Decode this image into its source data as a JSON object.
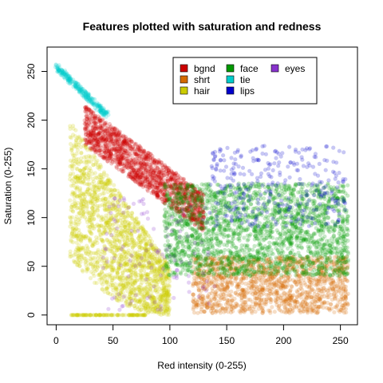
{
  "chart_data": {
    "type": "scatter",
    "title": "Features plotted with saturation and redness",
    "xlabel": "Red intensity (0-255)",
    "ylabel": "Saturation (0-255)",
    "xlim": [
      -8,
      265
    ],
    "ylim": [
      -10,
      275
    ],
    "x_ticks": [
      0,
      50,
      100,
      150,
      200,
      250
    ],
    "y_ticks": [
      0,
      50,
      100,
      150,
      200,
      250
    ],
    "grid": false,
    "legend_position": "top-right",
    "legend_columns": 3,
    "series": [
      {
        "name": "bgnd",
        "color": "#cc0000",
        "regions": [
          {
            "shape": "band",
            "x_from": 25,
            "x_to": 130,
            "y_top_start": 215,
            "y_top_end": 125,
            "thickness": 40,
            "count": 1500
          }
        ]
      },
      {
        "name": "shrt",
        "color": "#d46a00",
        "regions": [
          {
            "shape": "box",
            "x_from": 120,
            "x_to": 257,
            "y_from": 2,
            "y_to": 60,
            "count": 1400
          }
        ]
      },
      {
        "name": "hair",
        "color": "#cccc00",
        "regions": [
          {
            "shape": "curve",
            "x_from": 12,
            "x_to": 100,
            "y_base": 0,
            "y_peak": 200,
            "count": 1800
          },
          {
            "shape": "line",
            "x_from": 13,
            "x_to": 80,
            "y": 0,
            "count": 120
          }
        ]
      },
      {
        "name": "face",
        "color": "#009900",
        "regions": [
          {
            "shape": "box",
            "x_from": 95,
            "x_to": 257,
            "y_from": 40,
            "y_to": 135,
            "count": 2200
          }
        ]
      },
      {
        "name": "tie",
        "color": "#00cccc",
        "regions": [
          {
            "shape": "diag",
            "x_from": 0,
            "x_to": 45,
            "y_from": 255,
            "y_to": 205,
            "count": 260
          }
        ]
      },
      {
        "name": "lips",
        "color": "#0000cc",
        "regions": [
          {
            "shape": "box",
            "x_from": 135,
            "x_to": 255,
            "y_from": 90,
            "y_to": 175,
            "count": 320
          }
        ]
      },
      {
        "name": "eyes",
        "color": "#8833cc",
        "regions": [
          {
            "shape": "box",
            "x_from": 40,
            "x_to": 140,
            "y_from": 5,
            "y_to": 120,
            "count": 120
          }
        ]
      }
    ]
  }
}
